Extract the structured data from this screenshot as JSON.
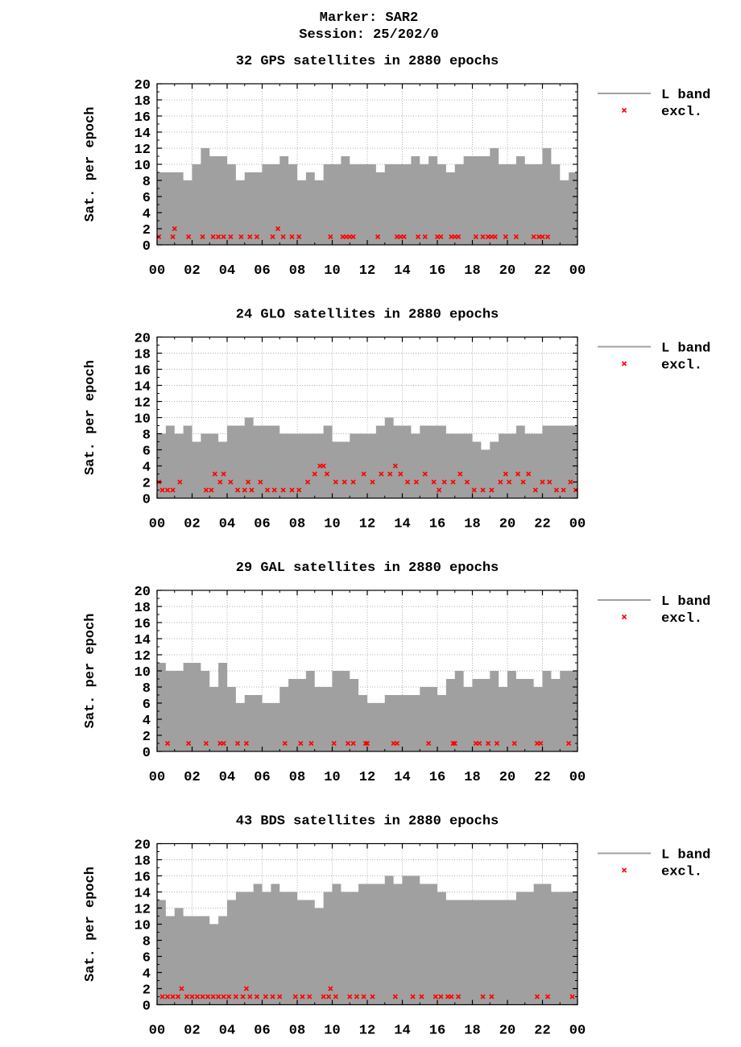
{
  "header": {
    "marker": "Marker: SAR2",
    "session": "Session: 25/202/0"
  },
  "legend": {
    "line_label": "L band",
    "marker_label": "excl."
  },
  "colors": {
    "fill": "#a0a0a0",
    "excluded": "#ff0000",
    "grid": "#b0b0b0"
  },
  "chart_data": [
    {
      "type": "area",
      "title": "32 GPS satellites in 2880 epochs",
      "ylabel": "Sat. per epoch",
      "ylim": [
        0,
        20
      ],
      "yticks": [
        "0",
        "2",
        "4",
        "6",
        "8",
        "10",
        "12",
        "14",
        "16",
        "18",
        "20"
      ],
      "xlim": [
        0,
        24
      ],
      "xticks": [
        "00",
        "02",
        "04",
        "06",
        "08",
        "10",
        "12",
        "14",
        "16",
        "18",
        "20",
        "22",
        "00"
      ],
      "grid": true,
      "legend_position": "right",
      "series": [
        {
          "name": "L band",
          "x": [
            0,
            0.5,
            1,
            1.5,
            2,
            2.5,
            3,
            3.5,
            4,
            4.5,
            5,
            5.5,
            6,
            6.5,
            7,
            7.5,
            8,
            8.5,
            9,
            9.5,
            10,
            10.5,
            11,
            11.5,
            12,
            12.5,
            13,
            13.5,
            14,
            14.5,
            15,
            15.5,
            16,
            16.5,
            17,
            17.5,
            18,
            18.5,
            19,
            19.5,
            20,
            20.5,
            21,
            21.5,
            22,
            22.5,
            23,
            23.5,
            24
          ],
          "values": [
            9,
            9,
            9,
            8,
            10,
            12,
            11,
            11,
            10,
            8,
            9,
            9,
            10,
            10,
            11,
            10,
            8,
            9,
            8,
            10,
            10,
            11,
            10,
            10,
            10,
            9,
            10,
            10,
            10,
            11,
            10,
            11,
            10,
            9,
            10,
            11,
            11,
            11,
            12,
            10,
            10,
            11,
            10,
            10,
            12,
            10,
            8,
            9,
            8
          ]
        },
        {
          "name": "excl.",
          "x": [
            0.1,
            0.9,
            1,
            1.8,
            2.6,
            3.2,
            3.5,
            3.8,
            4.2,
            4.8,
            5.3,
            5.7,
            6.6,
            6.9,
            7.2,
            7.7,
            8.1,
            9.9,
            10.6,
            10.8,
            11,
            11.2,
            12.6,
            13.7,
            13.9,
            14.1,
            14.9,
            15.3,
            16,
            16.2,
            16.8,
            17,
            17.2,
            18.2,
            18.6,
            18.9,
            19.1,
            19.3,
            19.9,
            20.5,
            21.5,
            21.8,
            22,
            22.3
          ],
          "values": [
            1,
            1,
            2,
            1,
            1,
            1,
            1,
            1,
            1,
            1,
            1,
            1,
            1,
            2,
            1,
            1,
            1,
            1,
            1,
            1,
            1,
            1,
            1,
            1,
            1,
            1,
            1,
            1,
            1,
            1,
            1,
            1,
            1,
            1,
            1,
            1,
            1,
            1,
            1,
            1,
            1,
            1,
            1,
            1
          ]
        }
      ]
    },
    {
      "type": "area",
      "title": "24 GLO satellites in 2880 epochs",
      "ylabel": "Sat. per epoch",
      "ylim": [
        0,
        20
      ],
      "yticks": [
        "0",
        "2",
        "4",
        "6",
        "8",
        "10",
        "12",
        "14",
        "16",
        "18",
        "20"
      ],
      "xlim": [
        0,
        24
      ],
      "xticks": [
        "00",
        "02",
        "04",
        "06",
        "08",
        "10",
        "12",
        "14",
        "16",
        "18",
        "20",
        "22",
        "00"
      ],
      "grid": true,
      "legend_position": "right",
      "series": [
        {
          "name": "L band",
          "x": [
            0,
            0.5,
            1,
            1.5,
            2,
            2.5,
            3,
            3.5,
            4,
            4.5,
            5,
            5.5,
            6,
            6.5,
            7,
            7.5,
            8,
            8.5,
            9,
            9.5,
            10,
            10.5,
            11,
            11.5,
            12,
            12.5,
            13,
            13.5,
            14,
            14.5,
            15,
            15.5,
            16,
            16.5,
            17,
            17.5,
            18,
            18.5,
            19,
            19.5,
            20,
            20.5,
            21,
            21.5,
            22,
            22.5,
            23,
            23.5,
            24
          ],
          "values": [
            8,
            9,
            8,
            9,
            7,
            8,
            8,
            7,
            9,
            9,
            10,
            9,
            9,
            9,
            8,
            8,
            8,
            8,
            8,
            9,
            7,
            7,
            8,
            8,
            8,
            9,
            10,
            9,
            9,
            8,
            9,
            9,
            9,
            8,
            8,
            8,
            7,
            6,
            7,
            8,
            8,
            9,
            8,
            8,
            9,
            9,
            9,
            9,
            8
          ]
        },
        {
          "name": "excl.",
          "x": [
            0.1,
            0.3,
            0.6,
            0.9,
            1.3,
            2.8,
            3.1,
            3.3,
            3.6,
            3.8,
            4.2,
            4.6,
            5,
            5.2,
            5.4,
            5.9,
            6.3,
            6.7,
            7.2,
            7.7,
            8.1,
            8.6,
            9,
            9.3,
            9.5,
            9.7,
            10.2,
            10.7,
            11.2,
            11.8,
            12.3,
            12.8,
            13.3,
            13.6,
            13.9,
            14.3,
            14.8,
            15.3,
            15.8,
            16.1,
            16.4,
            16.9,
            17.3,
            17.7,
            18.1,
            18.6,
            19.1,
            19.6,
            19.9,
            20.1,
            20.6,
            20.9,
            21.2,
            21.6,
            22,
            22.4,
            22.8,
            23.2,
            23.6,
            23.9
          ],
          "values": [
            2,
            1,
            1,
            1,
            2,
            1,
            1,
            3,
            2,
            3,
            2,
            1,
            1,
            2,
            1,
            2,
            1,
            1,
            1,
            1,
            1,
            2,
            3,
            4,
            4,
            3,
            2,
            2,
            2,
            3,
            2,
            3,
            3,
            4,
            3,
            2,
            2,
            3,
            2,
            1,
            2,
            2,
            3,
            2,
            1,
            1,
            1,
            2,
            3,
            2,
            3,
            2,
            3,
            1,
            2,
            2,
            1,
            1,
            2,
            1
          ]
        }
      ]
    },
    {
      "type": "area",
      "title": "29 GAL satellites in 2880 epochs",
      "ylabel": "Sat. per epoch",
      "ylim": [
        0,
        20
      ],
      "yticks": [
        "0",
        "2",
        "4",
        "6",
        "8",
        "10",
        "12",
        "14",
        "16",
        "18",
        "20"
      ],
      "xlim": [
        0,
        24
      ],
      "xticks": [
        "00",
        "02",
        "04",
        "06",
        "08",
        "10",
        "12",
        "14",
        "16",
        "18",
        "20",
        "22",
        "00"
      ],
      "grid": true,
      "legend_position": "right",
      "series": [
        {
          "name": "L band",
          "x": [
            0,
            0.5,
            1,
            1.5,
            2,
            2.5,
            3,
            3.5,
            4,
            4.5,
            5,
            5.5,
            6,
            6.5,
            7,
            7.5,
            8,
            8.5,
            9,
            9.5,
            10,
            10.5,
            11,
            11.5,
            12,
            12.5,
            13,
            13.5,
            14,
            14.5,
            15,
            15.5,
            16,
            16.5,
            17,
            17.5,
            18,
            18.5,
            19,
            19.5,
            20,
            20.5,
            21,
            21.5,
            22,
            22.5,
            23,
            23.5,
            24
          ],
          "values": [
            11,
            10,
            10,
            11,
            11,
            10,
            8,
            11,
            8,
            6,
            7,
            7,
            6,
            6,
            8,
            9,
            9,
            10,
            8,
            8,
            10,
            10,
            9,
            7,
            6,
            6,
            7,
            7,
            7,
            7,
            8,
            8,
            7,
            9,
            10,
            8,
            9,
            9,
            10,
            8,
            10,
            9,
            9,
            8,
            10,
            9,
            10,
            10,
            9
          ]
        },
        {
          "name": "excl.",
          "x": [
            0.6,
            1.8,
            2.8,
            3.6,
            3.8,
            4.6,
            5.1,
            7.3,
            8.2,
            8.8,
            10.1,
            10.9,
            11.2,
            11.9,
            12.0,
            13.5,
            13.7,
            15.5,
            16.9,
            17.0,
            18.2,
            18.4,
            18.9,
            19.4,
            20.4,
            21.7,
            21.9,
            23.5
          ],
          "values": [
            1,
            1,
            1,
            1,
            1,
            1,
            1,
            1,
            1,
            1,
            1,
            1,
            1,
            1,
            1,
            1,
            1,
            1,
            1,
            1,
            1,
            1,
            1,
            1,
            1,
            1,
            1,
            1
          ]
        }
      ]
    },
    {
      "type": "area",
      "title": "43 BDS satellites in 2880 epochs",
      "ylabel": "Sat. per epoch",
      "ylim": [
        0,
        20
      ],
      "yticks": [
        "0",
        "2",
        "4",
        "6",
        "8",
        "10",
        "12",
        "14",
        "16",
        "18",
        "20"
      ],
      "xlim": [
        0,
        24
      ],
      "xticks": [
        "00",
        "02",
        "04",
        "06",
        "08",
        "10",
        "12",
        "14",
        "16",
        "18",
        "20",
        "22",
        "00"
      ],
      "grid": true,
      "legend_position": "right",
      "series": [
        {
          "name": "L band",
          "x": [
            0,
            0.5,
            1,
            1.5,
            2,
            2.5,
            3,
            3.5,
            4,
            4.5,
            5,
            5.5,
            6,
            6.5,
            7,
            7.5,
            8,
            8.5,
            9,
            9.5,
            10,
            10.5,
            11,
            11.5,
            12,
            12.5,
            13,
            13.5,
            14,
            14.5,
            15,
            15.5,
            16,
            16.5,
            17,
            17.5,
            18,
            18.5,
            19,
            19.5,
            20,
            20.5,
            21,
            21.5,
            22,
            22.5,
            23,
            23.5,
            24
          ],
          "values": [
            13,
            11,
            12,
            11,
            11,
            11,
            10,
            11,
            13,
            14,
            14,
            15,
            14,
            15,
            14,
            14,
            13,
            13,
            12,
            14,
            15,
            14,
            14,
            15,
            15,
            15,
            16,
            15,
            16,
            16,
            15,
            15,
            14,
            13,
            13,
            13,
            13,
            13,
            13,
            13,
            13,
            14,
            14,
            15,
            15,
            14,
            14,
            14,
            12
          ]
        },
        {
          "name": "excl.",
          "x": [
            0.3,
            0.6,
            0.9,
            1.2,
            1.4,
            1.7,
            2.0,
            2.3,
            2.6,
            2.9,
            3.2,
            3.5,
            3.8,
            4.1,
            4.5,
            4.9,
            5.1,
            5.3,
            5.7,
            6.2,
            6.6,
            7.0,
            7.9,
            8.3,
            8.7,
            9.5,
            9.8,
            9.9,
            10.2,
            11.0,
            11.4,
            11.8,
            12.3,
            13.6,
            14.6,
            15.1,
            15.9,
            16.2,
            16.6,
            16.8,
            17.2,
            18.6,
            19.1,
            21.7,
            22.3,
            23.7
          ],
          "values": [
            1,
            1,
            1,
            1,
            2,
            1,
            1,
            1,
            1,
            1,
            1,
            1,
            1,
            1,
            1,
            1,
            2,
            1,
            1,
            1,
            1,
            1,
            1,
            1,
            1,
            1,
            1,
            2,
            1,
            1,
            1,
            1,
            1,
            1,
            1,
            1,
            1,
            1,
            1,
            1,
            1,
            1,
            1,
            1,
            1,
            1
          ]
        }
      ]
    }
  ]
}
